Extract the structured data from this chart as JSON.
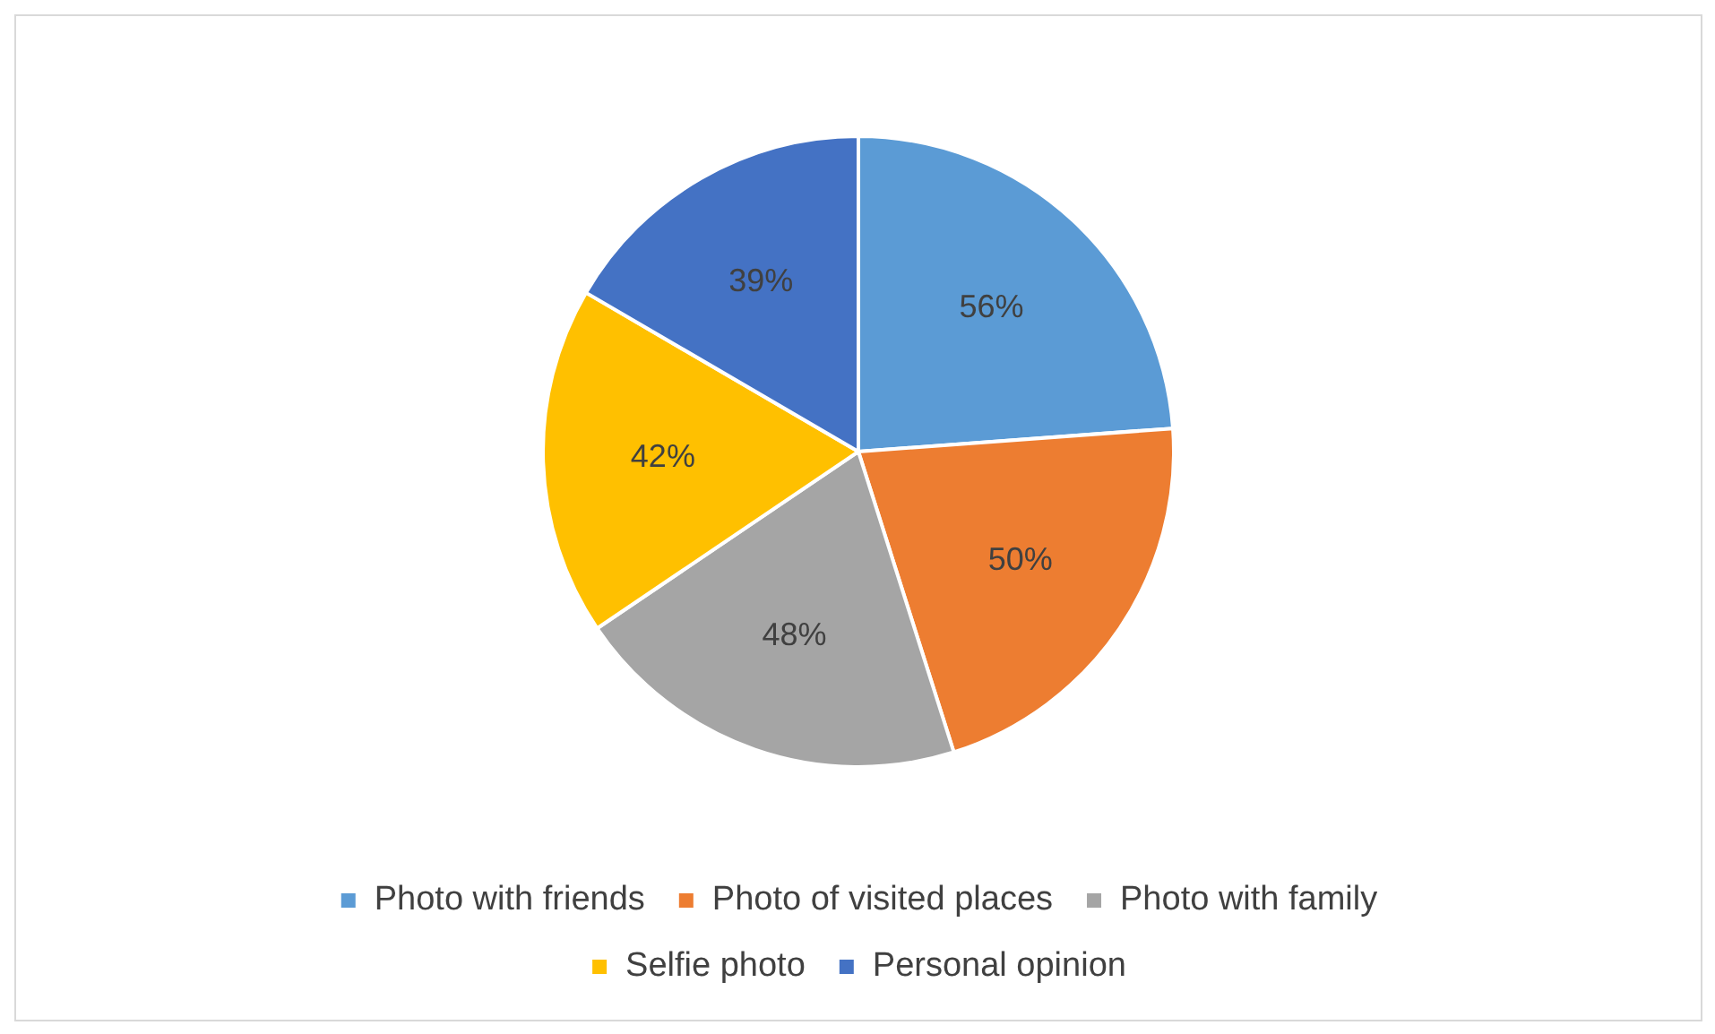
{
  "chart_data": {
    "type": "pie",
    "categories": [
      "Photo with friends",
      "Photo of visited places",
      "Photo with family",
      "Selfie photo",
      "Personal opinion"
    ],
    "values": [
      56,
      50,
      48,
      42,
      39
    ],
    "colors": [
      "#5b9bd5",
      "#ed7d31",
      "#a5a5a5",
      "#ffc000",
      "#4472c4"
    ],
    "value_labels": [
      "56%",
      "50%",
      "48%",
      "42%",
      "39%"
    ],
    "legend": "bottom"
  }
}
